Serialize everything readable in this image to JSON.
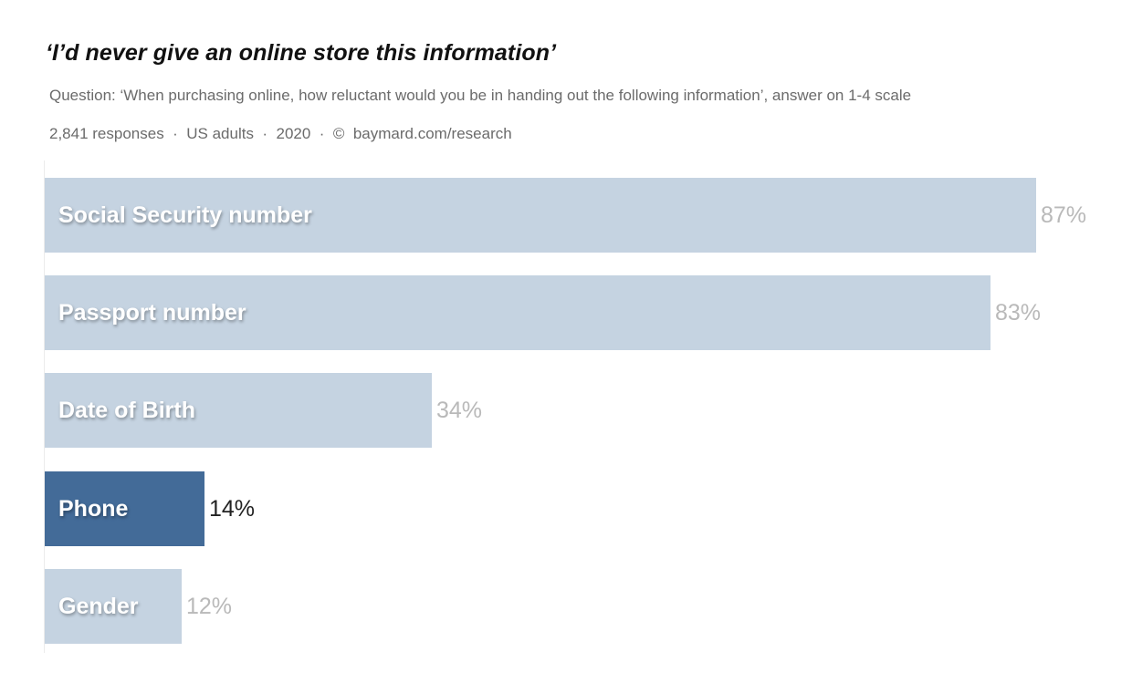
{
  "header": {
    "title": "‘I’d never give an online store this information’",
    "subtitle": "Question: ‘When purchasing online, how reluctant would you be in handing out the following information’, answer on 1-4 scale",
    "meta": "2,841 responses  ·  US adults  ·  2020  ·  ©  baymard.com/research"
  },
  "colors": {
    "bar": "#c5d3e1",
    "highlight_bar": "#436b98",
    "value_text": "#b9b9b9",
    "highlight_value_text": "#222222"
  },
  "chart_data": {
    "type": "bar",
    "orientation": "horizontal",
    "title": "‘I’d never give an online store this information’",
    "subtitle": "Question: ‘When purchasing online, how reluctant would you be in handing out the following information’, answer on 1-4 scale",
    "note": "2,841 responses · US adults · 2020 · © baymard.com/research",
    "categories": [
      "Social Security number",
      "Passport number",
      "Date of Birth",
      "Phone",
      "Gender"
    ],
    "values": [
      87,
      83,
      34,
      14,
      12
    ],
    "value_labels": [
      "87%",
      "83%",
      "34%",
      "14%",
      "12%"
    ],
    "highlighted": "Phone",
    "unit": "%",
    "xlim": [
      0,
      100
    ],
    "grid": false,
    "legend": null
  }
}
